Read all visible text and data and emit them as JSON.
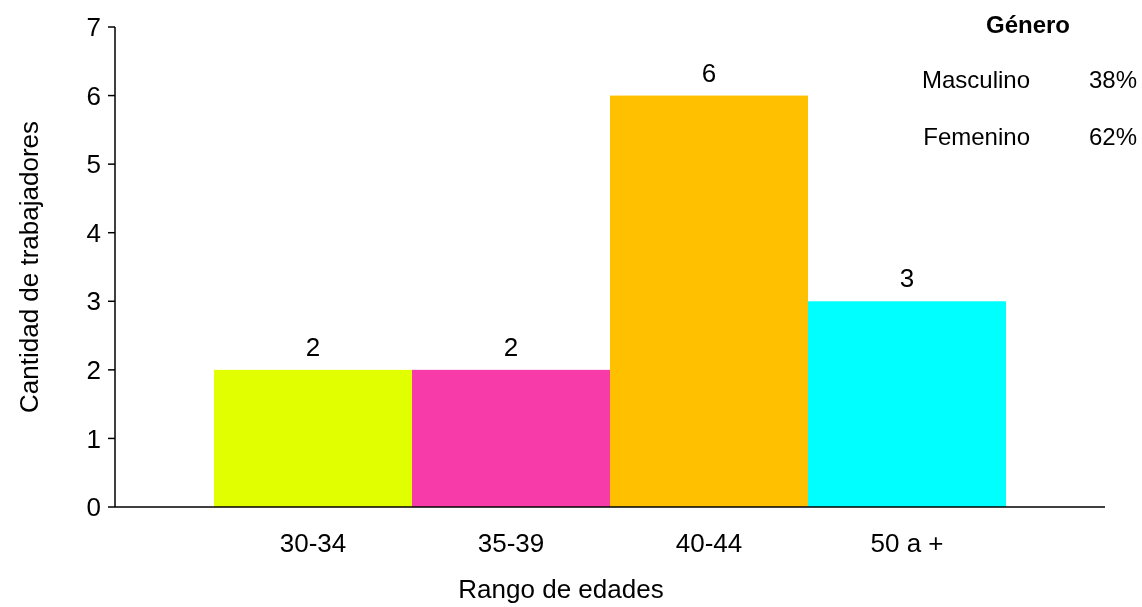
{
  "chart_data": {
    "type": "bar",
    "xlabel": "Rango de edades",
    "ylabel": "Cantidad de trabajadores",
    "categories": [
      "30-34",
      "35-39",
      "40-44",
      "50 a +"
    ],
    "values": [
      2,
      2,
      6,
      3
    ],
    "colors": [
      "#e2ff00",
      "#f73ba9",
      "#ffc000",
      "#00ffff"
    ],
    "ylim": [
      0,
      7
    ],
    "yticks": [
      0,
      1,
      2,
      3,
      4,
      5,
      6,
      7
    ],
    "data_labels": true,
    "annotations": [
      "Género",
      "Masculino",
      "38%",
      "Femenino",
      "62%"
    ]
  }
}
